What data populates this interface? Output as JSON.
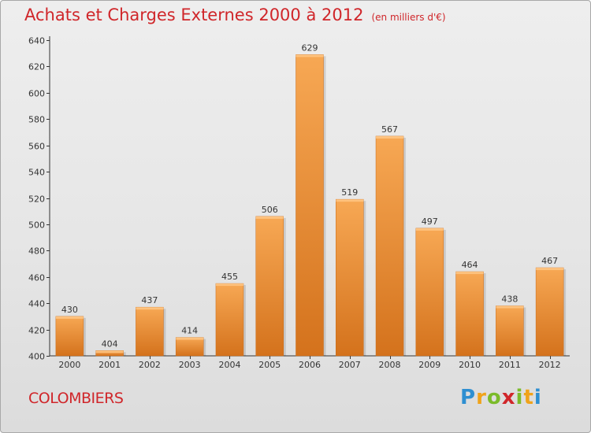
{
  "header": {
    "title": "Achats et Charges Externes 2000 à 2012",
    "subtitle": "(en milliers d'€)"
  },
  "footer": {
    "city": "COLOMBIERS",
    "logo_text": "Proxiti"
  },
  "colors": {
    "title": "#d0262a",
    "bar_light": "#f7a854",
    "bar_dark": "#d4721c",
    "axis": "#333333"
  },
  "chart_data": {
    "type": "bar",
    "title": "Achats et Charges Externes 2000 à 2012",
    "subtitle": "(en milliers d'€)",
    "categories": [
      "2000",
      "2001",
      "2002",
      "2003",
      "2004",
      "2005",
      "2006",
      "2007",
      "2008",
      "2009",
      "2010",
      "2011",
      "2012"
    ],
    "values": [
      430,
      404,
      437,
      414,
      455,
      506,
      629,
      519,
      567,
      497,
      464,
      438,
      467
    ],
    "ylim": [
      400,
      640
    ],
    "yticks": [
      400,
      420,
      440,
      460,
      480,
      500,
      520,
      540,
      560,
      580,
      600,
      620,
      640
    ],
    "grid": false,
    "data_labels": true
  }
}
